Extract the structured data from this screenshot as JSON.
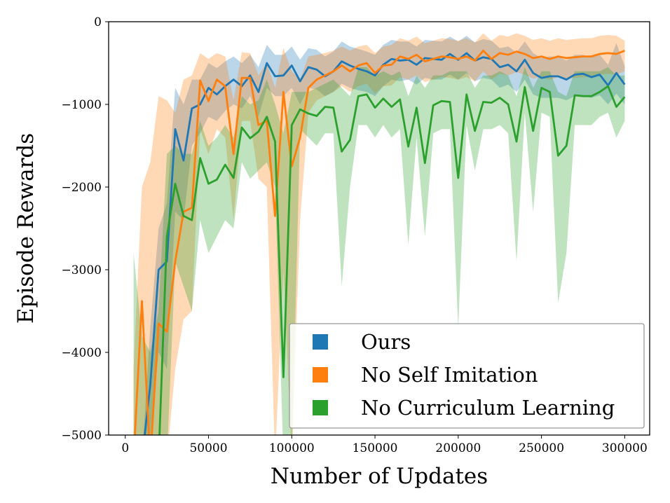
{
  "chart_data": {
    "type": "line",
    "title": "",
    "xlabel": "Number of Updates",
    "ylabel": "Episode Rewards",
    "xlim": [
      -10000,
      315000
    ],
    "ylim": [
      -5000,
      0
    ],
    "xticks": [
      0,
      50000,
      100000,
      150000,
      200000,
      250000,
      300000
    ],
    "xtick_labels": [
      "0",
      "50000",
      "100000",
      "150000",
      "200000",
      "250000",
      "300000"
    ],
    "yticks": [
      0,
      -1000,
      -2000,
      -3000,
      -4000,
      -5000
    ],
    "ytick_labels": [
      "0",
      "−1000",
      "−2000",
      "−3000",
      "−4000",
      "−5000"
    ],
    "grid": false,
    "legend_position": "lower-right",
    "legend": [
      "Ours",
      "No Self Imitation",
      "No Curriculum Learning"
    ],
    "series": [
      {
        "name": "Ours",
        "color": "#1f77b4",
        "x": [
          5000,
          10000,
          15000,
          20000,
          25000,
          30000,
          35000,
          40000,
          45000,
          50000,
          55000,
          60000,
          65000,
          70000,
          75000,
          80000,
          85000,
          90000,
          95000,
          100000,
          105000,
          110000,
          115000,
          120000,
          125000,
          130000,
          135000,
          140000,
          145000,
          150000,
          155000,
          160000,
          165000,
          170000,
          175000,
          180000,
          185000,
          190000,
          195000,
          200000,
          205000,
          210000,
          215000,
          220000,
          225000,
          230000,
          235000,
          240000,
          245000,
          250000,
          255000,
          260000,
          265000,
          270000,
          275000,
          280000,
          285000,
          290000,
          295000,
          300000
        ],
        "y": [
          -5300,
          -5300,
          -4400,
          -3000,
          -2900,
          -1300,
          -1680,
          -1050,
          -1000,
          -800,
          -880,
          -780,
          -700,
          -780,
          -650,
          -850,
          -500,
          -660,
          -650,
          -530,
          -720,
          -550,
          -580,
          -660,
          -600,
          -480,
          -530,
          -570,
          -600,
          -650,
          -520,
          -450,
          -470,
          -460,
          -520,
          -440,
          -450,
          -460,
          -390,
          -460,
          -380,
          -470,
          -430,
          -450,
          -550,
          -520,
          -600,
          -460,
          -620,
          -680,
          -660,
          -660,
          -700,
          -640,
          -630,
          -670,
          -640,
          -770,
          -620,
          -760
        ],
        "y_low": [
          -5300,
          -5300,
          -5000,
          -4000,
          -4200,
          -2300,
          -2400,
          -1500,
          -1350,
          -1150,
          -1200,
          -1080,
          -1000,
          -1050,
          -900,
          -1150,
          -800,
          -900,
          -900,
          -800,
          -1000,
          -800,
          -820,
          -900,
          -850,
          -750,
          -800,
          -830,
          -850,
          -900,
          -780,
          -700,
          -720,
          -700,
          -760,
          -680,
          -700,
          -700,
          -640,
          -700,
          -620,
          -720,
          -680,
          -700,
          -800,
          -760,
          -850,
          -700,
          -880,
          -920,
          -920,
          -920,
          -950,
          -900,
          -900,
          -920,
          -890,
          -1000,
          -870,
          -1000
        ],
        "y_high": [
          -5300,
          -5300,
          -3700,
          -2500,
          -2200,
          -800,
          -1000,
          -700,
          -700,
          -500,
          -560,
          -480,
          -420,
          -500,
          -400,
          -550,
          -280,
          -400,
          -400,
          -300,
          -460,
          -320,
          -340,
          -420,
          -360,
          -240,
          -300,
          -330,
          -360,
          -400,
          -280,
          -220,
          -240,
          -240,
          -300,
          -220,
          -230,
          -240,
          -180,
          -240,
          -170,
          -250,
          -210,
          -230,
          -320,
          -300,
          -370,
          -240,
          -380,
          -440,
          -420,
          -420,
          -470,
          -400,
          -400,
          -430,
          -400,
          -520,
          -260,
          -540
        ]
      },
      {
        "name": "No Self Imitation",
        "color": "#ff7f0e",
        "x": [
          5000,
          10000,
          15000,
          20000,
          25000,
          30000,
          35000,
          40000,
          45000,
          50000,
          55000,
          60000,
          65000,
          70000,
          75000,
          80000,
          85000,
          90000,
          95000,
          100000,
          105000,
          110000,
          115000,
          120000,
          125000,
          130000,
          135000,
          140000,
          145000,
          150000,
          155000,
          160000,
          165000,
          170000,
          175000,
          180000,
          185000,
          190000,
          195000,
          200000,
          205000,
          210000,
          215000,
          220000,
          225000,
          230000,
          235000,
          240000,
          245000,
          250000,
          255000,
          260000,
          265000,
          270000,
          275000,
          280000,
          285000,
          290000,
          295000,
          300000
        ],
        "y": [
          -5300,
          -3380,
          -5300,
          -3650,
          -3750,
          -2900,
          -2300,
          -2250,
          -710,
          -960,
          -700,
          -780,
          -1600,
          -680,
          -680,
          -1250,
          -1200,
          -2350,
          -850,
          -1750,
          -1400,
          -800,
          -700,
          -650,
          -600,
          -530,
          -600,
          -530,
          -500,
          -620,
          -530,
          -520,
          -420,
          -450,
          -400,
          -480,
          -450,
          -420,
          -430,
          -450,
          -420,
          -470,
          -350,
          -450,
          -380,
          -400,
          -360,
          -390,
          -440,
          -420,
          -450,
          -420,
          -440,
          -430,
          -420,
          -420,
          -390,
          -380,
          -390,
          -350
        ],
        "y_low": [
          -5300,
          -5300,
          -5300,
          -5300,
          -5300,
          -4200,
          -3600,
          -3500,
          -1300,
          -1600,
          -1300,
          -1400,
          -2400,
          -1200,
          -1200,
          -1900,
          -2000,
          -5300,
          -3000,
          -5300,
          -2400,
          -1100,
          -950,
          -900,
          -850,
          -780,
          -850,
          -780,
          -750,
          -870,
          -780,
          -770,
          -670,
          -700,
          -650,
          -730,
          -700,
          -670,
          -680,
          -700,
          -670,
          -720,
          -600,
          -700,
          -630,
          -650,
          -610,
          -640,
          -690,
          -670,
          -700,
          -670,
          -690,
          -680,
          -670,
          -670,
          -640,
          -630,
          -640,
          -600
        ],
        "y_high": [
          -4200,
          -2000,
          -1700,
          -900,
          -950,
          -1100,
          -700,
          -650,
          -380,
          -450,
          -380,
          -420,
          -950,
          -370,
          -380,
          -650,
          -500,
          -800,
          -320,
          -600,
          -700,
          -420,
          -400,
          -380,
          -350,
          -300,
          -350,
          -300,
          -280,
          -380,
          -300,
          -280,
          -200,
          -230,
          -180,
          -260,
          -230,
          -200,
          -210,
          -230,
          -200,
          -250,
          -140,
          -230,
          -160,
          -180,
          -140,
          -170,
          -220,
          -200,
          -230,
          -200,
          -220,
          -210,
          -200,
          -200,
          -170,
          -160,
          -170,
          -230
        ]
      },
      {
        "name": "No Curriculum Learning",
        "color": "#2ca02c",
        "x": [
          5000,
          10000,
          15000,
          20000,
          25000,
          30000,
          35000,
          40000,
          45000,
          50000,
          55000,
          60000,
          65000,
          70000,
          75000,
          80000,
          85000,
          90000,
          95000,
          100000,
          105000,
          110000,
          115000,
          120000,
          125000,
          130000,
          135000,
          140000,
          145000,
          150000,
          155000,
          160000,
          165000,
          170000,
          175000,
          180000,
          185000,
          190000,
          195000,
          200000,
          205000,
          210000,
          215000,
          220000,
          225000,
          230000,
          235000,
          240000,
          245000,
          250000,
          255000,
          260000,
          265000,
          270000,
          275000,
          280000,
          285000,
          290000,
          295000,
          300000
        ],
        "y": [
          -5300,
          -5300,
          -5300,
          -5300,
          -2600,
          -1960,
          -2350,
          -2400,
          -1650,
          -1960,
          -1910,
          -1730,
          -1890,
          -1280,
          -1410,
          -1330,
          -1150,
          -1450,
          -4300,
          -1250,
          -1060,
          -1110,
          -1140,
          -1030,
          -1040,
          -1570,
          -1430,
          -900,
          -880,
          -1040,
          -930,
          -1030,
          -940,
          -1510,
          -1040,
          -1710,
          -1010,
          -960,
          -970,
          -1890,
          -880,
          -1320,
          -970,
          -980,
          -920,
          -1000,
          -1450,
          -790,
          -1320,
          -800,
          -850,
          -1620,
          -1500,
          -890,
          -900,
          -900,
          -850,
          -780,
          -1030,
          -910
        ],
        "y_high": [
          -2800,
          -3800,
          -4000,
          -3500,
          -1600,
          -1500,
          -1600,
          -1600,
          -1200,
          -1500,
          -1400,
          -1250,
          -1400,
          -900,
          -1000,
          -950,
          -700,
          -1000,
          -1350,
          -850,
          -850,
          -850,
          -800,
          -750,
          -700,
          -800,
          -900,
          -550,
          -550,
          -650,
          -600,
          -650,
          -600,
          -900,
          -650,
          -800,
          -650,
          -650,
          -600,
          -600,
          -600,
          -800,
          -650,
          -650,
          -600,
          -650,
          -900,
          -550,
          -800,
          -600,
          -600,
          -850,
          -900,
          -600,
          -600,
          -600,
          -600,
          -550,
          -650,
          -650
        ],
        "y_low": [
          -5300,
          -5300,
          -5300,
          -5300,
          -5300,
          -2900,
          -3200,
          -3500,
          -2400,
          -2800,
          -2600,
          -2400,
          -2500,
          -1700,
          -1900,
          -1800,
          -1700,
          -2000,
          -5300,
          -5300,
          -1300,
          -1400,
          -1500,
          -1350,
          -1350,
          -3200,
          -2000,
          -1250,
          -1250,
          -1400,
          -1250,
          -1400,
          -1300,
          -2700,
          -1400,
          -2600,
          -1350,
          -1300,
          -1300,
          -3700,
          -1250,
          -1800,
          -1300,
          -1300,
          -1250,
          -1350,
          -2900,
          -1100,
          -2300,
          -1100,
          -1150,
          -3400,
          -2800,
          -1250,
          -1250,
          -1250,
          -1150,
          -1100,
          -1400,
          -1200
        ]
      }
    ]
  }
}
